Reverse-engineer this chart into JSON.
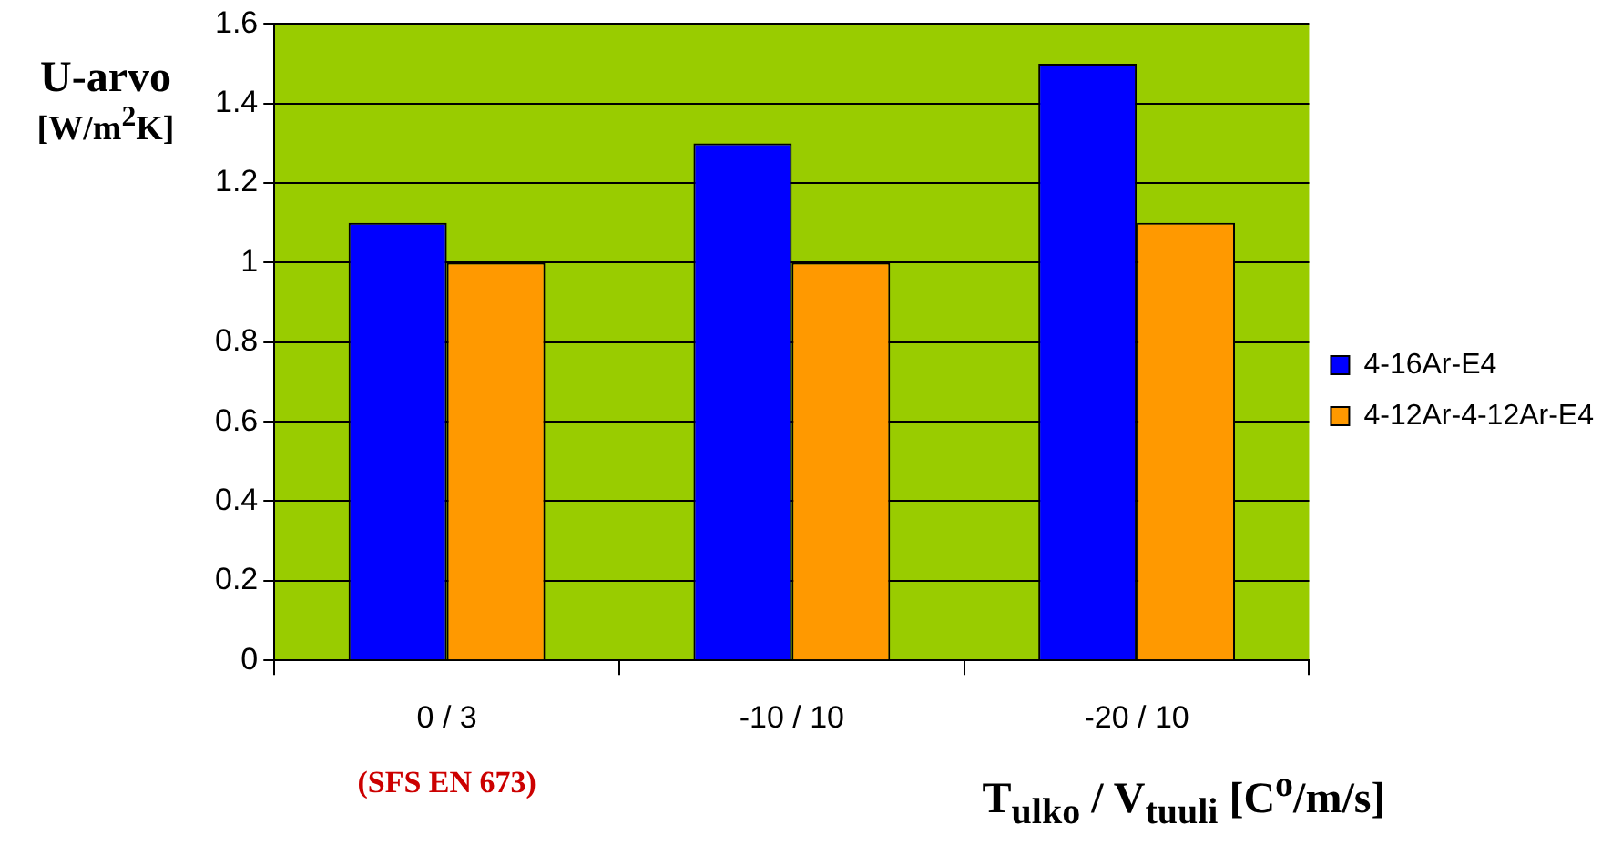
{
  "chart_data": {
    "type": "bar",
    "ylabel": "U-arvo [W/m$^{2}$K]",
    "xlabel": "T$_{ulko}$ / V$_{tuuli}$ [C$^{o}$/m/s]",
    "categories": [
      "0 / 3",
      "-10 / 10",
      "-20 / 10"
    ],
    "series": [
      {
        "name": "4-16Ar-E4",
        "color": "#0000ff",
        "values": [
          1.1,
          1.3,
          1.5
        ]
      },
      {
        "name": "4-12Ar-4-12Ar-E4",
        "color": "#ff9900",
        "values": [
          1.0,
          1.0,
          1.1
        ]
      }
    ],
    "ylim": [
      0,
      1.6
    ],
    "yticks": [
      0,
      0.2,
      0.4,
      0.6,
      0.8,
      1,
      1.2,
      1.4,
      1.6
    ],
    "annotations": [
      "(SFS EN 673)"
    ],
    "grid": "y",
    "legend": "right"
  }
}
